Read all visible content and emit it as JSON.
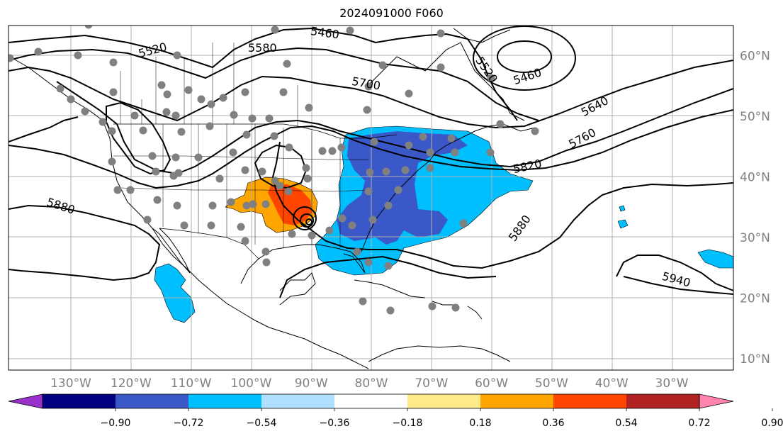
{
  "title": "2024091000 F060",
  "lon_ticks": [
    {
      "lon": -130,
      "label": "130°W"
    },
    {
      "lon": -120,
      "label": "120°W"
    },
    {
      "lon": -110,
      "label": "110°W"
    },
    {
      "lon": -100,
      "label": "100°W"
    },
    {
      "lon": -90,
      "label": "90°W"
    },
    {
      "lon": -80,
      "label": "80°W"
    },
    {
      "lon": -70,
      "label": "70°W"
    },
    {
      "lon": -60,
      "label": "60°W"
    },
    {
      "lon": -50,
      "label": "50°W"
    },
    {
      "lon": -40,
      "label": "40°W"
    },
    {
      "lon": -30,
      "label": "30°W"
    }
  ],
  "lat_ticks": [
    {
      "lat": 10,
      "label": "10°N"
    },
    {
      "lat": 20,
      "label": "20°N"
    },
    {
      "lat": 30,
      "label": "30°N"
    },
    {
      "lat": 40,
      "label": "40°N"
    },
    {
      "lat": 50,
      "label": "50°N"
    },
    {
      "lat": 60,
      "label": "60°N"
    }
  ],
  "contour_labels": [
    "5520",
    "5460",
    "5580",
    "5520",
    "5460",
    "5700",
    "5640",
    "5760",
    "5820",
    "5880",
    "5880",
    "5940"
  ],
  "colorbar": {
    "colors": [
      "#9932cc",
      "#000080",
      "#3a58c8",
      "#00bfff",
      "#b0e0ff",
      "#ffffff",
      "#ffea8a",
      "#ffa500",
      "#ff4500",
      "#b22222",
      "#ff85b0"
    ],
    "tick_labels": [
      "−0.90",
      "−0.72",
      "−0.54",
      "−0.36",
      "−0.18",
      "0.18",
      "0.36",
      "0.54",
      "0.72",
      "0.90"
    ]
  },
  "legend_colors": {
    "stations": "#808080",
    "contours": "#000000",
    "grid": "#b0b0b0",
    "tick_text": "#808080"
  }
}
